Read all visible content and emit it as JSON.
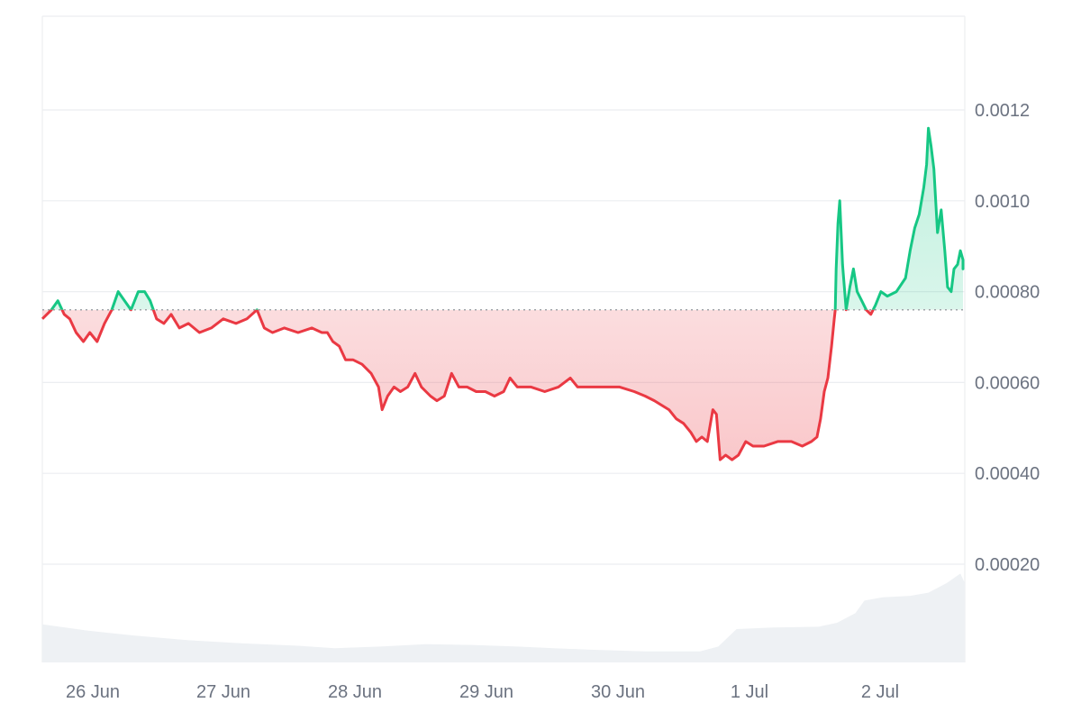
{
  "chart_data": {
    "type": "area",
    "baseline": 0.00076,
    "ylim": [
      0.0,
      0.0014
    ],
    "y_ticks": [
      0.0002,
      0.0004,
      0.0006,
      0.0008,
      0.001,
      0.0012
    ],
    "y_tick_labels": [
      "0.00020",
      "0.00040",
      "0.00060",
      "0.00080",
      "0.0010",
      "0.0012"
    ],
    "x_tick_labels": [
      "26 Jun",
      "27 Jun",
      "28 Jun",
      "29 Jun",
      "30 Jun",
      "1 Jul",
      "2 Jul"
    ],
    "grid": true,
    "colors": {
      "up": "#16c784",
      "down": "#ea3943",
      "baseline": "#a0a4aa",
      "grid": "#eceef1",
      "volume": "#eef1f4",
      "axis_text": "#6b7280"
    },
    "price_points": [
      [
        0.0,
        0.00074
      ],
      [
        0.01,
        0.00076
      ],
      [
        0.017,
        0.00078
      ],
      [
        0.024,
        0.00075
      ],
      [
        0.03,
        0.00074
      ],
      [
        0.037,
        0.00071
      ],
      [
        0.045,
        0.00069
      ],
      [
        0.052,
        0.00071
      ],
      [
        0.06,
        0.00069
      ],
      [
        0.068,
        0.00073
      ],
      [
        0.076,
        0.00076
      ],
      [
        0.083,
        0.0008
      ],
      [
        0.09,
        0.00078
      ],
      [
        0.097,
        0.00076
      ],
      [
        0.105,
        0.0008
      ],
      [
        0.112,
        0.0008
      ],
      [
        0.118,
        0.00078
      ],
      [
        0.125,
        0.00074
      ],
      [
        0.133,
        0.00073
      ],
      [
        0.141,
        0.00075
      ],
      [
        0.15,
        0.00072
      ],
      [
        0.16,
        0.00073
      ],
      [
        0.172,
        0.00071
      ],
      [
        0.185,
        0.00072
      ],
      [
        0.198,
        0.00074
      ],
      [
        0.212,
        0.00073
      ],
      [
        0.224,
        0.00074
      ],
      [
        0.235,
        0.00076
      ],
      [
        0.243,
        0.00072
      ],
      [
        0.252,
        0.00071
      ],
      [
        0.265,
        0.00072
      ],
      [
        0.28,
        0.00071
      ],
      [
        0.295,
        0.00072
      ],
      [
        0.306,
        0.00071
      ],
      [
        0.312,
        0.00071
      ],
      [
        0.318,
        0.00069
      ],
      [
        0.325,
        0.00068
      ],
      [
        0.332,
        0.00065
      ],
      [
        0.34,
        0.00065
      ],
      [
        0.35,
        0.00064
      ],
      [
        0.36,
        0.00062
      ],
      [
        0.368,
        0.00059
      ],
      [
        0.372,
        0.00054
      ],
      [
        0.378,
        0.00057
      ],
      [
        0.385,
        0.00059
      ],
      [
        0.392,
        0.00058
      ],
      [
        0.4,
        0.00059
      ],
      [
        0.408,
        0.00062
      ],
      [
        0.415,
        0.00059
      ],
      [
        0.425,
        0.00057
      ],
      [
        0.432,
        0.00056
      ],
      [
        0.44,
        0.00057
      ],
      [
        0.448,
        0.00062
      ],
      [
        0.456,
        0.00059
      ],
      [
        0.465,
        0.00059
      ],
      [
        0.475,
        0.00058
      ],
      [
        0.485,
        0.00058
      ],
      [
        0.495,
        0.00057
      ],
      [
        0.505,
        0.00058
      ],
      [
        0.512,
        0.00061
      ],
      [
        0.52,
        0.00059
      ],
      [
        0.535,
        0.00059
      ],
      [
        0.55,
        0.00058
      ],
      [
        0.565,
        0.00059
      ],
      [
        0.578,
        0.00061
      ],
      [
        0.586,
        0.00059
      ],
      [
        0.6,
        0.00059
      ],
      [
        0.615,
        0.00059
      ],
      [
        0.632,
        0.00059
      ],
      [
        0.648,
        0.00058
      ],
      [
        0.66,
        0.00057
      ],
      [
        0.67,
        0.00056
      ],
      [
        0.678,
        0.00055
      ],
      [
        0.686,
        0.00054
      ],
      [
        0.694,
        0.00052
      ],
      [
        0.702,
        0.00051
      ],
      [
        0.71,
        0.00049
      ],
      [
        0.716,
        0.00047
      ],
      [
        0.722,
        0.00048
      ],
      [
        0.728,
        0.00047
      ],
      [
        0.734,
        0.00054
      ],
      [
        0.738,
        0.00053
      ],
      [
        0.742,
        0.00043
      ],
      [
        0.748,
        0.00044
      ],
      [
        0.755,
        0.00043
      ],
      [
        0.762,
        0.00044
      ],
      [
        0.77,
        0.00047
      ],
      [
        0.778,
        0.00046
      ],
      [
        0.79,
        0.00046
      ],
      [
        0.805,
        0.00047
      ],
      [
        0.82,
        0.00047
      ],
      [
        0.832,
        0.00046
      ],
      [
        0.842,
        0.00047
      ],
      [
        0.848,
        0.00048
      ],
      [
        0.852,
        0.00052
      ],
      [
        0.856,
        0.00058
      ],
      [
        0.86,
        0.00061
      ],
      [
        0.864,
        0.00068
      ],
      [
        0.867,
        0.00074
      ],
      [
        0.868,
        0.00076
      ],
      [
        0.869,
        0.00085
      ],
      [
        0.871,
        0.00095
      ],
      [
        0.873,
        0.001
      ],
      [
        0.876,
        0.00086
      ],
      [
        0.88,
        0.00076
      ],
      [
        0.884,
        0.00081
      ],
      [
        0.888,
        0.00085
      ],
      [
        0.892,
        0.0008
      ],
      [
        0.897,
        0.00078
      ],
      [
        0.902,
        0.00076
      ],
      [
        0.907,
        0.00075
      ],
      [
        0.912,
        0.00077
      ],
      [
        0.918,
        0.0008
      ],
      [
        0.925,
        0.00079
      ],
      [
        0.935,
        0.0008
      ],
      [
        0.945,
        0.00083
      ],
      [
        0.95,
        0.00089
      ],
      [
        0.955,
        0.00094
      ],
      [
        0.96,
        0.00097
      ],
      [
        0.965,
        0.00103
      ],
      [
        0.968,
        0.00108
      ],
      [
        0.97,
        0.00116
      ],
      [
        0.973,
        0.00112
      ],
      [
        0.976,
        0.00107
      ],
      [
        0.98,
        0.00093
      ],
      [
        0.984,
        0.00098
      ],
      [
        0.988,
        0.00089
      ],
      [
        0.991,
        0.00081
      ],
      [
        0.995,
        0.0008
      ],
      [
        0.998,
        0.00085
      ],
      [
        1.002,
        0.00086
      ],
      [
        1.005,
        0.00089
      ],
      [
        1.008,
        0.00087
      ],
      [
        1.01,
        0.00085
      ],
      [
        1.012,
        0.00087
      ]
    ],
    "volume_points": [
      [
        0.0,
        48
      ],
      [
        0.05,
        40
      ],
      [
        0.1,
        34
      ],
      [
        0.16,
        28
      ],
      [
        0.22,
        24
      ],
      [
        0.28,
        21
      ],
      [
        0.32,
        18
      ],
      [
        0.37,
        20
      ],
      [
        0.42,
        23
      ],
      [
        0.47,
        22
      ],
      [
        0.52,
        20
      ],
      [
        0.56,
        18
      ],
      [
        0.6,
        16
      ],
      [
        0.66,
        14
      ],
      [
        0.72,
        14
      ],
      [
        0.74,
        20
      ],
      [
        0.76,
        42
      ],
      [
        0.8,
        44
      ],
      [
        0.85,
        45
      ],
      [
        0.87,
        50
      ],
      [
        0.89,
        62
      ],
      [
        0.9,
        78
      ],
      [
        0.92,
        82
      ],
      [
        0.95,
        84
      ],
      [
        0.97,
        88
      ],
      [
        0.99,
        100
      ],
      [
        1.005,
        112
      ],
      [
        1.012,
        100
      ],
      [
        1.015,
        96
      ]
    ]
  }
}
